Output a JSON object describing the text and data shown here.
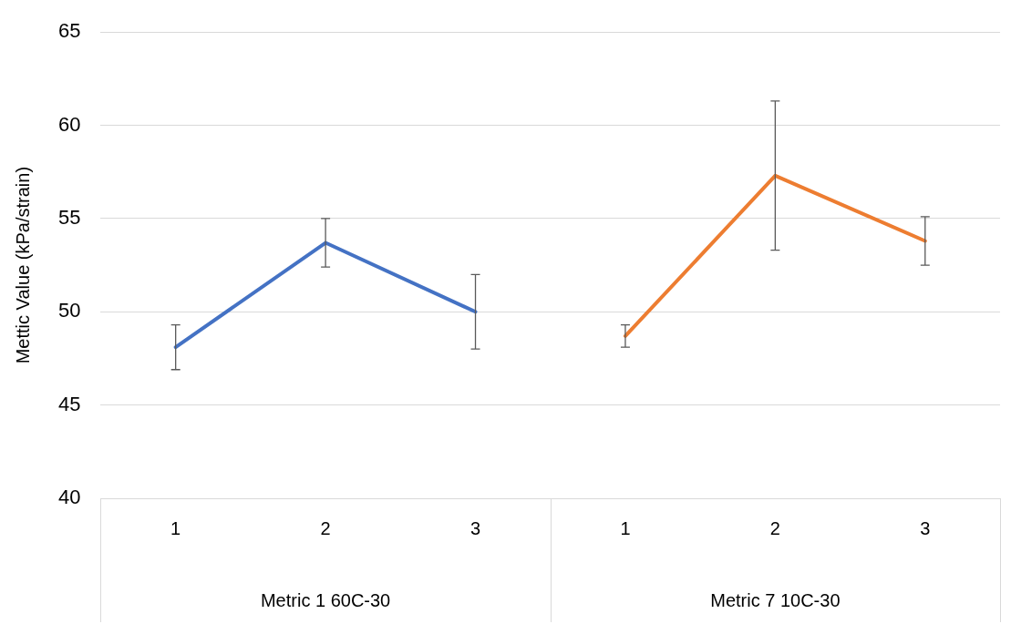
{
  "chart_data": {
    "type": "line",
    "ylabel": "Mettic Value (kPa/strain)",
    "categories": [
      "1",
      "2",
      "3",
      "1",
      "2",
      "3"
    ],
    "series": [
      {
        "color": "#4472c4",
        "values": [
          48.1,
          53.7,
          50.0,
          null,
          null,
          null
        ],
        "errors": [
          1.2,
          1.3,
          2.0,
          null,
          null,
          null
        ]
      },
      {
        "color": "#ed7d31",
        "values": [
          null,
          null,
          null,
          48.7,
          57.3,
          53.8
        ],
        "errors": [
          null,
          null,
          null,
          0.6,
          4.0,
          1.3
        ]
      }
    ],
    "ylim": [
      40,
      65
    ],
    "yticks": [
      40,
      45,
      50,
      55,
      60,
      65
    ],
    "grid": "y",
    "marker": "none",
    "annotations": [
      "Metric 1 60C-30",
      "Metric 7 10C-30"
    ]
  }
}
